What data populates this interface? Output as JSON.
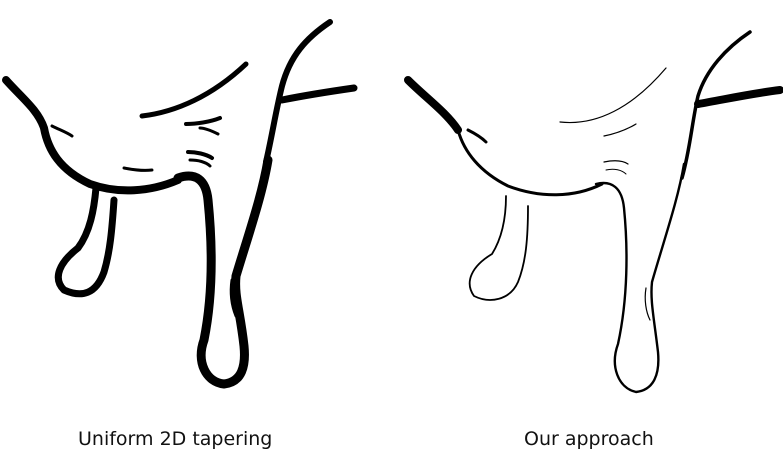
{
  "figure": {
    "panels": [
      {
        "caption": "Uniform 2D tapering",
        "stroke_color": "#000000"
      },
      {
        "caption": "Our approach",
        "stroke_color": "#000000"
      }
    ]
  }
}
